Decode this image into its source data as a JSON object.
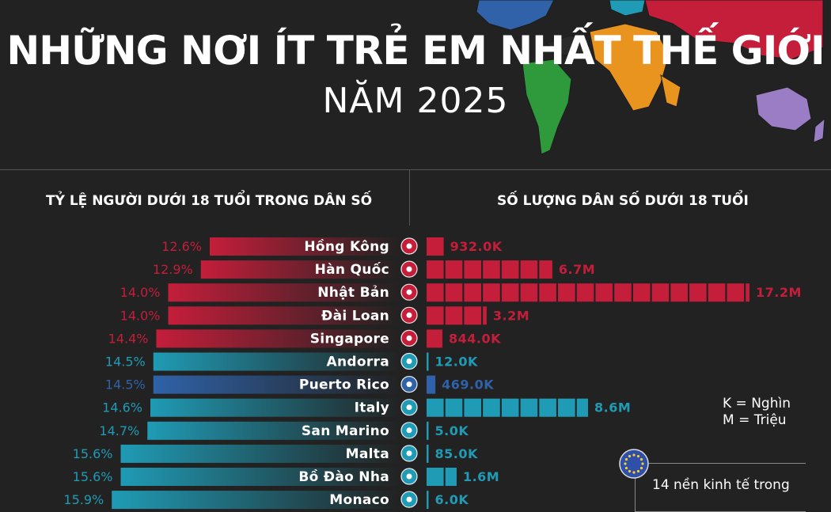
{
  "header": {
    "title_line1": "NHỮNG NƠI ÍT TRẺ EM NHẤT THẾ GIỚI",
    "title_line2": "NĂM 2025"
  },
  "left_heading": "TỶ LỆ NGƯỜI DƯỚI 18 TUỔI TRONG DÂN SỐ",
  "right_heading": "SỐ LƯỢNG DÂN SỐ DƯỚI 18 TUỔI",
  "legend": {
    "k": "K = Nghìn",
    "m": "M = Triệu"
  },
  "eu_note": "14 nền kinh tế trong",
  "colors": {
    "red": "#c41e3a",
    "teal": "#1f9bb5",
    "blue": "#2f62a8",
    "bg": "#222222"
  },
  "map_colors": [
    "#2f62a8",
    "#1f9bb5",
    "#c41e3a",
    "#e8941e",
    "#2e9a3c",
    "#9a7dc4",
    "#2a2a2a"
  ],
  "chart_data": {
    "type": "bar",
    "categories": [
      "Hồng Kông",
      "Hàn Quốc",
      "Nhật Bản",
      "Đài Loan",
      "Singapore",
      "Andorra",
      "Puerto Rico",
      "Italy",
      "San Marino",
      "Malta",
      "Bồ Đào Nha",
      "Monaco"
    ],
    "series": [
      {
        "values": [
          12.6,
          12.9,
          14.0,
          14.0,
          14.4,
          14.5,
          14.5,
          14.6,
          14.7,
          15.6,
          15.6,
          15.9
        ],
        "labels": [
          "12.6%",
          "12.9%",
          "14.0%",
          "14.0%",
          "14.4%",
          "14.5%",
          "14.5%",
          "14.6%",
          "14.7%",
          "15.6%",
          "15.6%",
          "15.9%"
        ]
      },
      {
        "values": [
          932000,
          6700000,
          17200000,
          3200000,
          844000,
          12000,
          469000,
          8600000,
          5000,
          85000,
          1600000,
          6000
        ],
        "labels": [
          "932.0K",
          "6.7M",
          "17.2M",
          "3.2M",
          "844.0K",
          "12.0K",
          "469.0K",
          "8.6M",
          "5.0K",
          "85.0K",
          "1.6M",
          "6.0K"
        ]
      }
    ],
    "group": [
      "red",
      "red",
      "red",
      "red",
      "red",
      "teal",
      "blue",
      "teal",
      "teal",
      "teal",
      "teal",
      "teal"
    ],
    "flags": [
      "hong-kong-flag-icon",
      "south-korea-flag-icon",
      "japan-flag-icon",
      "taiwan-flag-icon",
      "singapore-flag-icon",
      "andorra-flag-icon",
      "puerto-rico-flag-icon",
      "italy-flag-icon",
      "san-marino-flag-icon",
      "malta-flag-icon",
      "portugal-flag-icon",
      "monaco-flag-icon"
    ]
  }
}
